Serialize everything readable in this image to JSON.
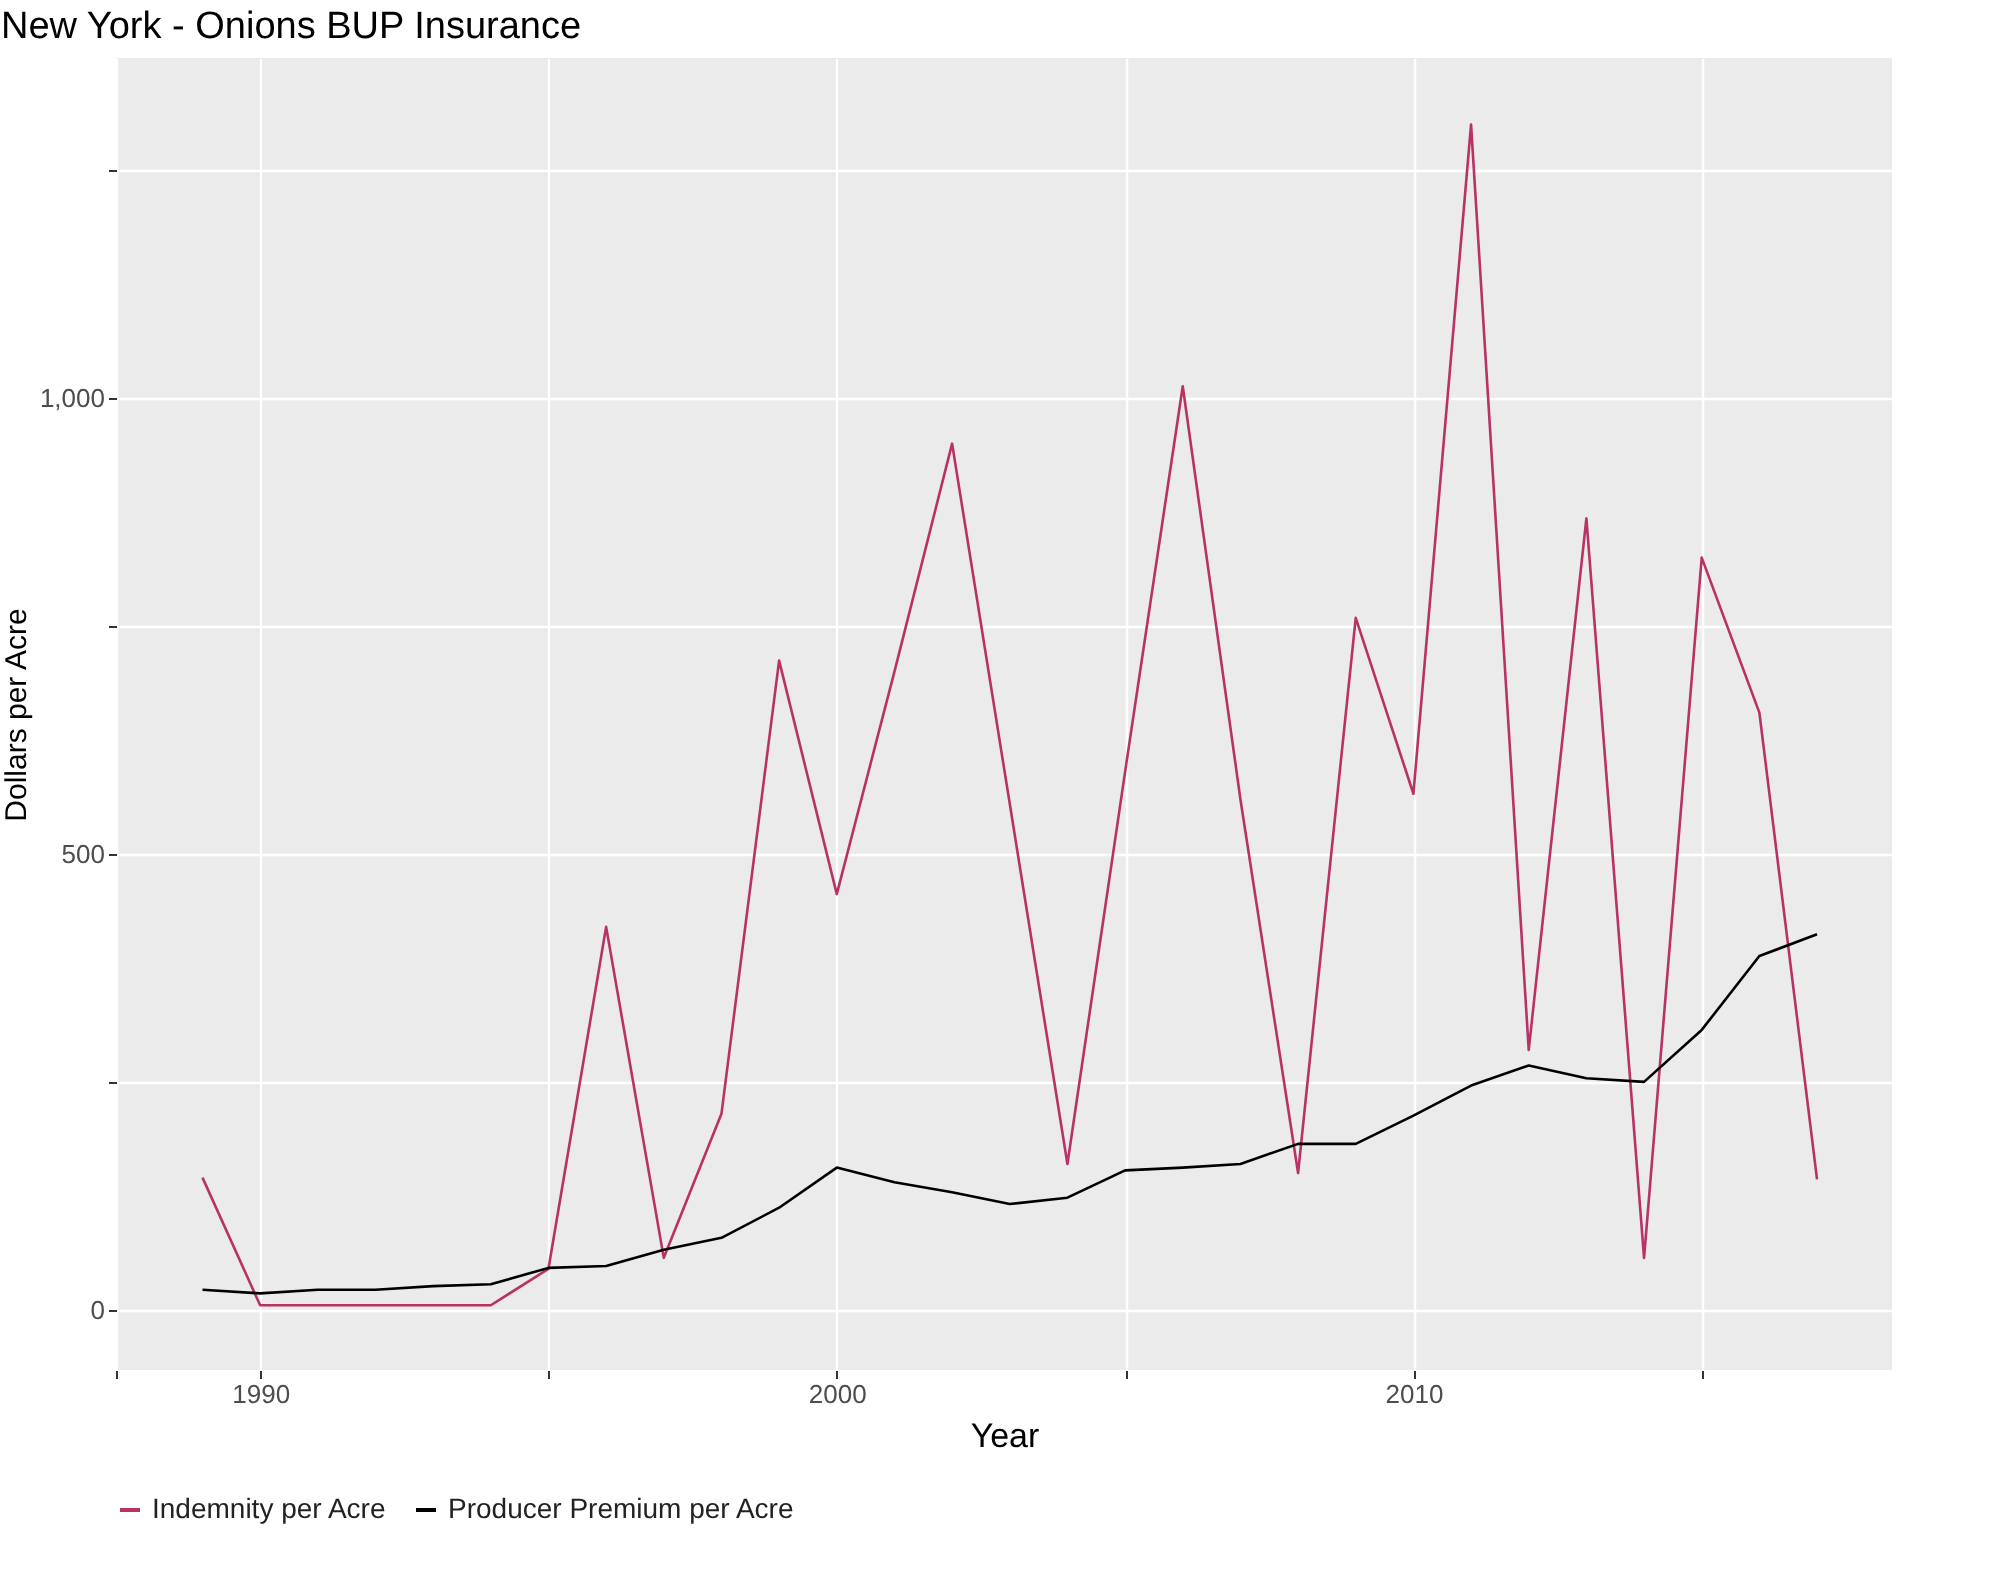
{
  "chart_data": {
    "type": "line",
    "title": "New York - Onions BUP Insurance",
    "xlabel": "Year",
    "ylabel": "Dollars per Acre",
    "x": [
      1989,
      1990,
      1991,
      1992,
      1993,
      1994,
      1995,
      1996,
      1997,
      1998,
      1999,
      2000,
      2001,
      2002,
      2003,
      2004,
      2005,
      2006,
      2007,
      2008,
      2009,
      2010,
      2011,
      2012,
      2013,
      2014,
      2015,
      2016,
      2017
    ],
    "series": [
      {
        "name": "Indemnity per Acre",
        "color": "#b83265",
        "values": [
          145,
          5,
          5,
          5,
          5,
          5,
          45,
          420,
          57,
          215,
          712,
          456,
          700,
          950,
          555,
          160,
          590,
          1013,
          560,
          150,
          759,
          566,
          1300,
          285,
          868,
          57,
          825,
          655,
          143
        ]
      },
      {
        "name": "Producer Premium per Acre",
        "color": "#000000",
        "values": [
          22,
          18,
          22,
          22,
          26,
          28,
          46,
          48,
          66,
          79,
          112,
          156,
          140,
          129,
          116,
          123,
          153,
          156,
          160,
          182,
          182,
          213,
          246,
          268,
          254,
          250,
          307,
          388,
          412
        ]
      }
    ],
    "xlim": [
      1987.5,
      2018.3
    ],
    "ylim": [
      -66,
      1373
    ],
    "xticks": [
      {
        "value": 1987.5,
        "label": null
      },
      1990,
      {
        "value": 1995,
        "label": null
      },
      2000,
      {
        "value": 2005,
        "label": null
      },
      2010,
      {
        "value": 2015,
        "label": null
      }
    ],
    "yticks": [
      0,
      {
        "value": 250,
        "label": null
      },
      500,
      {
        "value": 750,
        "label": null
      },
      {
        "value": 1000,
        "label": "1,000"
      },
      {
        "value": 1250,
        "label": null
      }
    ],
    "grid": true,
    "legend": "bottom",
    "marker": "none",
    "line_style": "solid"
  }
}
